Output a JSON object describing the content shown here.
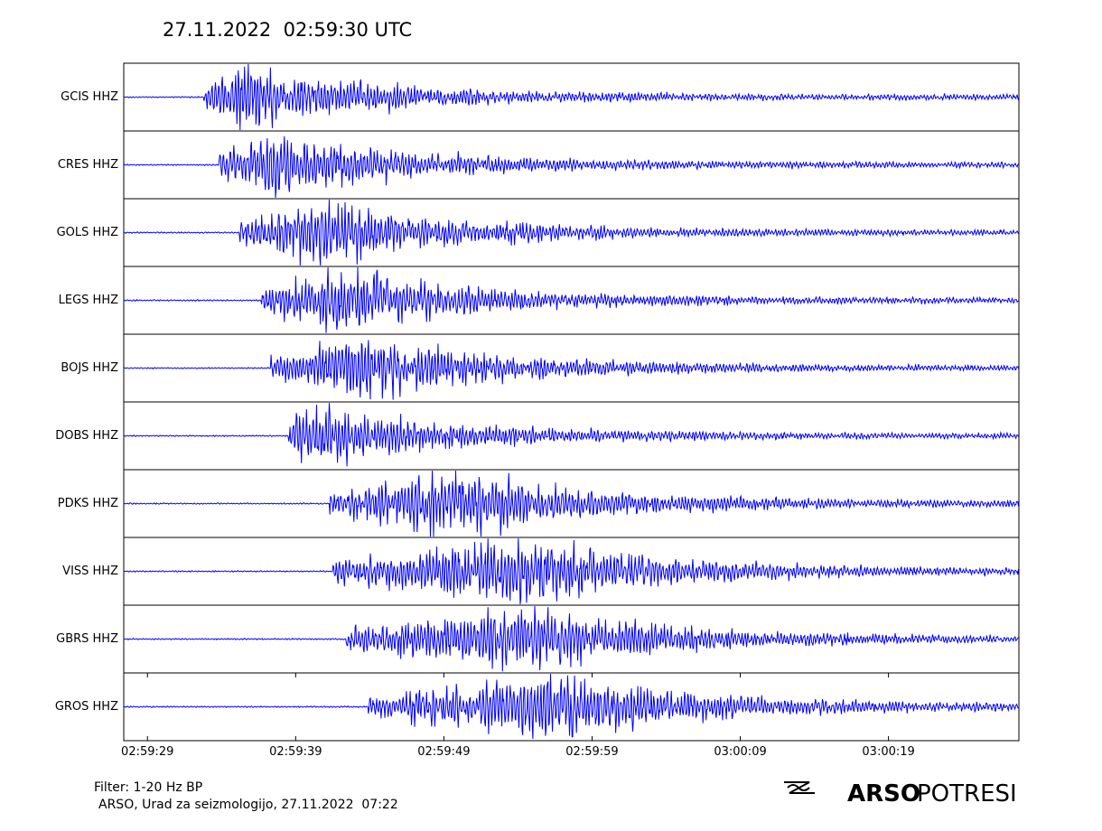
{
  "chart_data": {
    "type": "seismogram",
    "title": "27.11.2022  02:59:30 UTC",
    "color": "#0000ff",
    "xlim": [
      27.4,
      87.8
    ],
    "xticks": [
      {
        "value": 29,
        "label": "02:59:29"
      },
      {
        "value": 39,
        "label": "02:59:39"
      },
      {
        "value": 49,
        "label": "02:59:49"
      },
      {
        "value": 59,
        "label": "02:59:59"
      },
      {
        "value": 69,
        "label": "03:00:09"
      },
      {
        "value": 79,
        "label": "03:00:19"
      }
    ],
    "series": [
      {
        "name": "GCIS HHZ",
        "onset": 32.8,
        "peak": 35.8
      },
      {
        "name": "CRES HHZ",
        "onset": 33.8,
        "peak": 37.5
      },
      {
        "name": "GOLS HHZ",
        "onset": 35.2,
        "peak": 40.7
      },
      {
        "name": "LEGS HHZ",
        "onset": 36.7,
        "peak": 42.2
      },
      {
        "name": "BOJS HHZ",
        "onset": 37.3,
        "peak": 43.7
      },
      {
        "name": "DOBS HHZ",
        "onset": 38.5,
        "peak": 39.8
      },
      {
        "name": "PDKS HHZ",
        "onset": 41.3,
        "peak": 50.3
      },
      {
        "name": "VISS HHZ",
        "onset": 41.5,
        "peak": 55.0
      },
      {
        "name": "GBRS HHZ",
        "onset": 42.4,
        "peak": 55.1
      },
      {
        "name": "GROS HHZ",
        "onset": 43.9,
        "peak": 57.3
      }
    ]
  },
  "footer": {
    "filter": "Filter: 1-20 Hz BP",
    "credit": "ARSO, Urad za seizmologijo, 27.11.2022  07:22"
  },
  "logo": {
    "brand": "ARSO",
    "product": "POTRESI"
  }
}
